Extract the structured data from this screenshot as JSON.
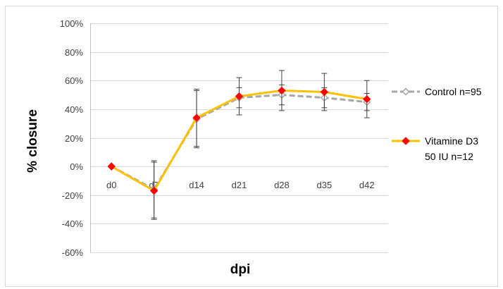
{
  "chart_data": {
    "type": "line",
    "title": "",
    "xlabel": "dpi",
    "ylabel": "% closure",
    "categories": [
      "d0",
      "d7",
      "d14",
      "d21",
      "d28",
      "d35",
      "d42"
    ],
    "ylim": [
      -60,
      100
    ],
    "yticks": [
      -60,
      -40,
      -20,
      0,
      20,
      40,
      60,
      80,
      100
    ],
    "ytick_labels": [
      "-60%",
      "-40%",
      "-20%",
      "0%",
      "20%",
      "40%",
      "60%",
      "80%",
      "100%"
    ],
    "grid": true,
    "legend_position": "right",
    "series": [
      {
        "name": "Control n=95",
        "color": "#a6a6a6",
        "line_style": "dashed",
        "marker": "diamond-outline",
        "values": [
          0,
          -16,
          33,
          48,
          50,
          48,
          45
        ],
        "error": [
          0,
          20,
          20,
          7,
          7,
          7,
          6
        ]
      },
      {
        "name": "Vitamine D3 50 IU n=12",
        "legend_lines": [
          "Vitamine D3",
          "50 IU n=12"
        ],
        "color": "#ffc000",
        "marker_color": "#ff0000",
        "line_style": "solid",
        "marker": "diamond-filled",
        "values": [
          0,
          -17,
          34,
          49,
          53,
          52,
          47
        ],
        "error": [
          0,
          20,
          20,
          13,
          14,
          13,
          13
        ]
      }
    ]
  }
}
